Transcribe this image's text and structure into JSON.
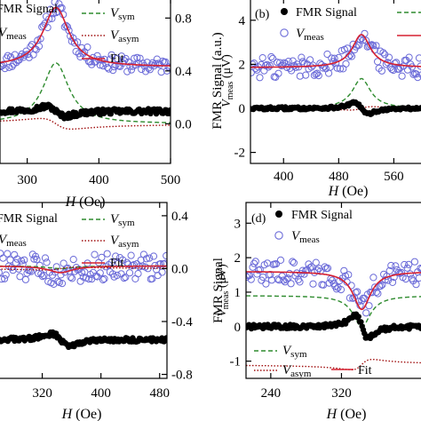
{
  "chart_data": [
    {
      "type": "scatter",
      "panel_label": "",
      "xlabel": "H (Oe)",
      "ylabel_left": "",
      "ylabel_right": "V_meas (μV)",
      "xlim": [
        262,
        500
      ],
      "ylim_left": [
        -1.0,
        2.8
      ],
      "ylim_right": [
        -0.3,
        0.95
      ],
      "x_ticks": [
        300,
        400,
        500
      ],
      "x_tick_labels": [
        "300",
        "400",
        "500"
      ],
      "y_ticks_right": [
        0.0,
        0.4,
        0.8
      ],
      "y_tick_labels_right": [
        "0.0",
        "0.4",
        "0.8"
      ],
      "legend": [
        "FMR Signal",
        "V_meas",
        "V_sym",
        "V_asym",
        "Fit"
      ],
      "resonance_field": 340,
      "linewidth": 22,
      "fmr_amplitude": 3.8,
      "v_meas_baseline": 0.43,
      "v_meas_amplitude": 0.45,
      "v_meas_noise": 0.06,
      "v_sym_amplitude": 0.46,
      "v_asym_amplitude": 0.08,
      "fmr_offset": 0.2
    },
    {
      "type": "scatter",
      "panel_label": "(b)",
      "xlabel": "H (Oe)",
      "ylabel_left": "FMR Signal (a.u.)",
      "ylabel_right": "",
      "xlim": [
        352,
        602
      ],
      "ylim_left": [
        -2.5,
        5
      ],
      "ylim_right": [
        -2.5,
        5
      ],
      "x_ticks": [
        400,
        480,
        560
      ],
      "x_tick_labels": [
        "400",
        "480",
        "560"
      ],
      "y_ticks_left": [
        -2,
        0,
        2,
        4
      ],
      "y_tick_labels_left": [
        "-2",
        "0",
        "2",
        "4"
      ],
      "legend": [
        "FMR Signal",
        "V_meas"
      ],
      "resonance_field": 513,
      "linewidth": 16,
      "fmr_amplitude": 6.2,
      "v_meas_baseline": 1.85,
      "v_meas_amplitude": 1.5,
      "v_meas_noise": 0.5,
      "v_sym_amplitude": 1.35,
      "v_asym_amplitude": -0.15,
      "fmr_offset": 0
    },
    {
      "type": "scatter",
      "panel_label": "",
      "xlabel": "H (Oe)",
      "ylabel_left": "",
      "ylabel_right": "V_meas (μV)",
      "xlim": [
        260,
        490
      ],
      "ylim_left": [
        -2.4,
        2.6
      ],
      "ylim_right": [
        -0.83,
        0.5
      ],
      "x_ticks": [
        320,
        400,
        480
      ],
      "x_tick_labels": [
        "320",
        "400",
        "480"
      ],
      "y_ticks_right": [
        -0.8,
        -0.4,
        0.0,
        0.4
      ],
      "y_tick_labels_right": [
        "-0.8",
        "-0.4",
        "0.0",
        "0.4"
      ],
      "legend": [
        "FMR Signal",
        "V_meas",
        "V_sym",
        "V_asym",
        "Fit"
      ],
      "resonance_field": 345,
      "linewidth": 20,
      "fmr_amplitude": 5.0,
      "v_meas_baseline": 0.02,
      "v_meas_amplitude": -0.05,
      "v_meas_noise": 0.1,
      "v_sym_amplitude": -0.02,
      "v_asym_amplitude": -0.02,
      "fmr_offset": -1.3
    },
    {
      "type": "scatter",
      "panel_label": "(d)",
      "xlabel": "H (Oe)",
      "ylabel_left": "FMR Signal",
      "ylabel_right": "",
      "xlim": [
        212,
        412
      ],
      "ylim_left": [
        -1.5,
        3.6
      ],
      "ylim_right": [
        -1.5,
        3.6
      ],
      "x_ticks": [
        240,
        320
      ],
      "x_tick_labels": [
        "240",
        "320"
      ],
      "y_ticks_left": [
        -1,
        0,
        1,
        2,
        3
      ],
      "y_tick_labels_left": [
        "-1",
        "0",
        "1",
        "2",
        "3"
      ],
      "legend": [
        "FMR Signal",
        "V_meas",
        "V_sym",
        "V_asym",
        "Fit"
      ],
      "resonance_field": 343,
      "linewidth": 12,
      "fmr_amplitude": 6.0,
      "v_meas_baseline": 1.6,
      "v_meas_amplitude": -1.1,
      "v_meas_noise": 0.35,
      "v_sym_amplitude": -0.9,
      "v_asym_amplitude": -0.3,
      "fmr_offset": 0
    }
  ],
  "legend_text": {
    "fmr_signal": "FMR Signal",
    "v_sym_v": "V",
    "v_sym_sub": "sym",
    "v_asym_v": "V",
    "v_asym_sub": "asym",
    "v_meas_v": "V",
    "v_meas_sub": "meas",
    "fit": "Fit"
  },
  "axis_text": {
    "a_xlabel": "H (Oe)",
    "a_ylabel_v": "V",
    "a_ylabel_sub": "meas",
    "a_ylabel_unit": " (μV)",
    "b_xlabel": "H (Oe)",
    "b_ylabel": "FMR Signal (a.u.)",
    "b_panel": "(b)",
    "c_xlabel": "H (Oe)",
    "c_ylabel_v": "V",
    "c_ylabel_sub": "meas",
    "c_ylabel_unit": " (μV)",
    "d_xlabel": "H (Oe)",
    "d_ylabel": "FMR Signal",
    "d_panel": "(d)"
  },
  "colors": {
    "fmr": "#000000",
    "v_meas": "#6a6ad8",
    "v_sym": "#2e8b2e",
    "v_asym": "#a01010",
    "fit": "#d62030"
  }
}
